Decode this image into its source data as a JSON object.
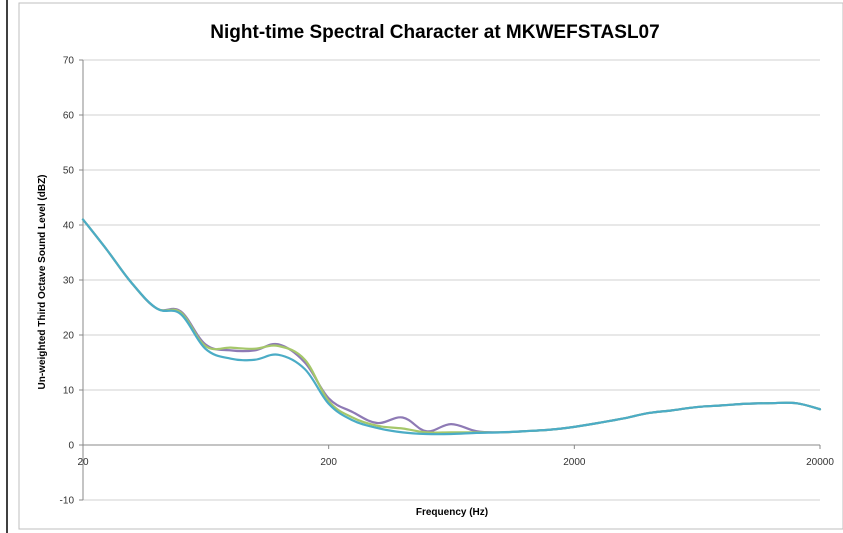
{
  "chart_data": {
    "type": "line",
    "title": "Night-time Spectral Character at MKWEFSTASL07",
    "xlabel": "Frequency (Hz)",
    "ylabel": "Un-weighted Third Octave Sound Level (dBZ)",
    "x_scale": "log",
    "xlim": [
      20,
      20000
    ],
    "ylim": [
      -10,
      70
    ],
    "x_ticks": [
      "20",
      "200",
      "2000",
      "20000"
    ],
    "y_ticks": [
      "70",
      "60",
      "50",
      "40",
      "30",
      "20",
      "10",
      "0",
      "-10"
    ],
    "grid": "horizontal",
    "legend": "none",
    "series": [
      {
        "color": "#8e7ab5",
        "x": [
          20,
          25,
          31.5,
          40,
          50,
          63,
          80,
          100,
          125,
          160,
          200,
          250,
          315,
          400,
          500,
          630,
          800,
          1000,
          1250,
          1600,
          2000,
          2500,
          3150,
          4000,
          5000,
          6300,
          8000,
          10000,
          12500,
          16000,
          20000
        ],
        "y": [
          41,
          35.5,
          29.5,
          24.8,
          24.3,
          18.3,
          17.2,
          17.2,
          18.3,
          15,
          8.5,
          6,
          4,
          5,
          2.5,
          3.8,
          2.5,
          2.3,
          2.5,
          2.8,
          3.3,
          4,
          4.8,
          5.8,
          6.3,
          6.9,
          7.2,
          7.5,
          7.6,
          7.6,
          6.5
        ]
      },
      {
        "color": "#a5c76a",
        "x": [
          20,
          25,
          31.5,
          40,
          50,
          63,
          80,
          100,
          125,
          160,
          200,
          250,
          315,
          400,
          500,
          630,
          800,
          1000,
          1250,
          1600,
          2000,
          2500,
          3150,
          4000,
          5000,
          6300,
          8000,
          10000,
          12500,
          16000,
          20000
        ],
        "y": [
          41,
          35.5,
          29.5,
          24.8,
          24.1,
          18,
          17.7,
          17.5,
          18,
          15.5,
          8,
          5,
          3.5,
          3,
          2.3,
          2.3,
          2.3,
          2.3,
          2.5,
          2.8,
          3.3,
          4,
          4.8,
          5.8,
          6.3,
          6.9,
          7.2,
          7.5,
          7.6,
          7.6,
          6.5
        ]
      },
      {
        "color": "#4bacc6",
        "x": [
          20,
          25,
          31.5,
          40,
          50,
          63,
          80,
          100,
          125,
          160,
          200,
          250,
          315,
          400,
          500,
          630,
          800,
          1000,
          1250,
          1600,
          2000,
          2500,
          3150,
          4000,
          5000,
          6300,
          8000,
          10000,
          12500,
          16000,
          20000
        ],
        "y": [
          41,
          35.5,
          29.5,
          24.8,
          23.8,
          17.5,
          15.7,
          15.5,
          16.4,
          13.8,
          7.5,
          4.5,
          3.1,
          2.3,
          2,
          2,
          2.2,
          2.3,
          2.5,
          2.8,
          3.3,
          4,
          4.8,
          5.8,
          6.3,
          6.9,
          7.2,
          7.5,
          7.6,
          7.6,
          6.5
        ]
      }
    ]
  }
}
